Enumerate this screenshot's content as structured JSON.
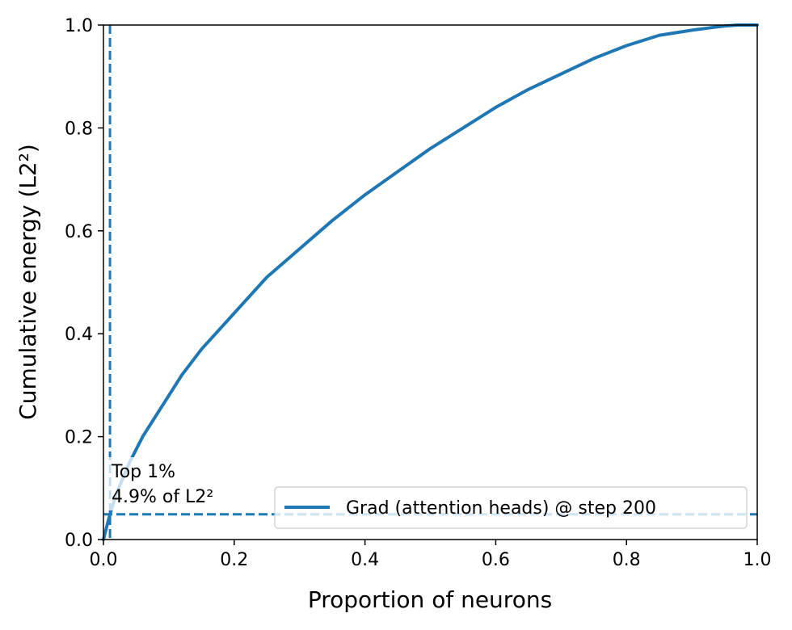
{
  "chart_data": {
    "type": "line",
    "title": "",
    "xlabel": "Proportion of neurons",
    "ylabel": "Cumulative energy (L2²)",
    "xlim": [
      0.0,
      1.0
    ],
    "ylim": [
      0.0,
      1.0
    ],
    "xticks": [
      "0.0",
      "0.2",
      "0.4",
      "0.6",
      "0.8",
      "1.0"
    ],
    "yticks": [
      "0.0",
      "0.2",
      "0.4",
      "0.6",
      "0.8",
      "1.0"
    ],
    "grid": false,
    "legend": {
      "position": "bottom-right",
      "entries": [
        "Grad (attention heads) @ step 200"
      ]
    },
    "series": [
      {
        "name": "Grad (attention heads) @ step 200",
        "color": "#1f77b4",
        "style": "solid",
        "x": [
          0.0,
          0.005,
          0.01,
          0.02,
          0.04,
          0.06,
          0.08,
          0.1,
          0.12,
          0.15,
          0.2,
          0.25,
          0.3,
          0.35,
          0.4,
          0.45,
          0.5,
          0.55,
          0.6,
          0.65,
          0.7,
          0.75,
          0.8,
          0.85,
          0.9,
          0.93,
          0.95,
          0.97,
          1.0
        ],
        "y": [
          0.0,
          0.025,
          0.049,
          0.09,
          0.15,
          0.2,
          0.24,
          0.28,
          0.32,
          0.37,
          0.44,
          0.51,
          0.565,
          0.62,
          0.67,
          0.715,
          0.76,
          0.8,
          0.84,
          0.875,
          0.905,
          0.935,
          0.96,
          0.98,
          0.99,
          0.995,
          0.998,
          1.0,
          1.0
        ]
      }
    ],
    "reference_lines": [
      {
        "orientation": "vertical",
        "x": 0.01,
        "color": "#1f77b4",
        "style": "dashed"
      },
      {
        "orientation": "horizontal",
        "y": 0.049,
        "color": "#1f77b4",
        "style": "dashed"
      }
    ],
    "annotation": {
      "line1": "Top 1%",
      "line2": "4.9% of L2²",
      "x": 0.01,
      "y": 0.049
    }
  }
}
